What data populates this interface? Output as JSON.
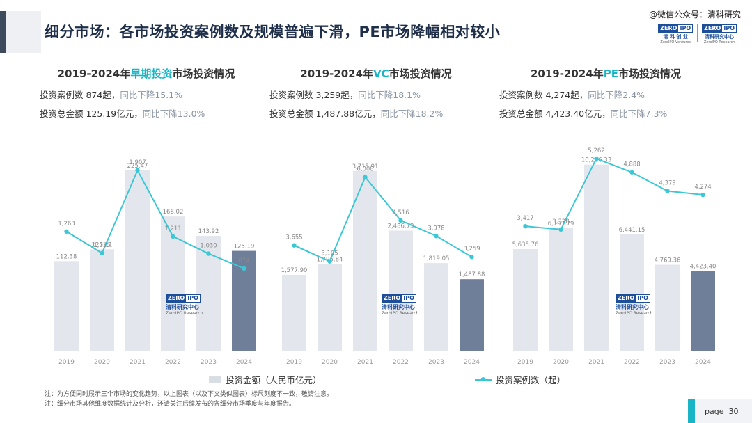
{
  "header": {
    "title": "细分市场：各市场投资案例数及规模普遍下滑，PE市场降幅相对较小",
    "wechat": "@微信公众号：清科研究",
    "logo1": {
      "a": "ZERO",
      "b": "IPO",
      "cn": "清 科 创 业",
      "en": "ZeroIPO Ventures"
    },
    "logo2": {
      "a": "ZERO",
      "b": "IPO",
      "cn": "清科研究中心",
      "en": "ZeroIPO Research"
    }
  },
  "panels": [
    {
      "title_pre": "2019-2024年",
      "title_hl": "早期投资",
      "title_post": "市场投资情况",
      "count_label": "投资案例数 874起，",
      "count_change": "同比下降15.1%",
      "amount_label": "投资总金额 125.19亿元，",
      "amount_change": "同比下降13.0%"
    },
    {
      "title_pre": "2019-2024年",
      "title_hl": "VC",
      "title_post": "市场投资情况",
      "count_label": "投资案例数 3,259起，",
      "count_change": "同比下降18.1%",
      "amount_label": "投资总金额 1,487.88亿元，",
      "amount_change": "同比下降18.2%"
    },
    {
      "title_pre": "2019-2024年",
      "title_hl": "PE",
      "title_post": "市场投资情况",
      "count_label": "投资案例数 4,274起，",
      "count_change": "同比下降2.4%",
      "amount_label": "投资总金额 4,423.40亿元，",
      "amount_change": "同比下降7.3%"
    }
  ],
  "chart_data": [
    {
      "type": "bar+line",
      "title": "2019-2024年早期投资市场投资情况",
      "categories": [
        "2019",
        "2020",
        "2021",
        "2022",
        "2023",
        "2024"
      ],
      "series": [
        {
          "name": "投资金额（人民币亿元）",
          "type": "bar",
          "values": [
            112.38,
            127.11,
            225.47,
            168.02,
            143.92,
            125.19
          ],
          "labels": [
            "112.38",
            "127.11",
            "225.47",
            "168.02",
            "143.92",
            "125.19"
          ]
        },
        {
          "name": "投资案例数（起）",
          "type": "line",
          "values": [
            1263,
            1035,
            1907,
            1211,
            1030,
            874
          ],
          "labels": [
            "1,263",
            "1,035",
            "1,907",
            "1,211",
            "1,030",
            "874"
          ]
        }
      ],
      "bar_ylim": [
        0,
        260
      ],
      "line_ylim": [
        0,
        2200
      ]
    },
    {
      "type": "bar+line",
      "title": "2019-2024年VC市场投资情况",
      "categories": [
        "2019",
        "2020",
        "2021",
        "2022",
        "2023",
        "2024"
      ],
      "series": [
        {
          "name": "投资金额（人民币亿元）",
          "type": "bar",
          "values": [
            1577.9,
            1795.84,
            3715.91,
            2486.73,
            1819.05,
            1487.88
          ],
          "labels": [
            "1,577.90",
            "1,795.84",
            "3,715.91",
            "2,486.73",
            "1,819.05",
            "1,487.88"
          ]
        },
        {
          "name": "投资案例数（起）",
          "type": "line",
          "values": [
            3655,
            3105,
            6008,
            4516,
            3978,
            3259
          ],
          "labels": [
            "3,655",
            "3,105",
            "6,008",
            "4,516",
            "3,978",
            "3,259"
          ]
        }
      ],
      "bar_ylim": [
        0,
        4300
      ],
      "line_ylim": [
        0,
        7200
      ]
    },
    {
      "type": "bar+line",
      "title": "2019-2024年PE市场投资情况",
      "categories": [
        "2019",
        "2020",
        "2021",
        "2022",
        "2023",
        "2024"
      ],
      "series": [
        {
          "name": "投资金额（人民币亿元）",
          "type": "bar",
          "values": [
            5635.76,
            6793.79,
            10286.33,
            6441.15,
            4769.36,
            4423.4
          ],
          "labels": [
            "5,635.76",
            "6,793.79",
            "10,286.33",
            "6,441.15",
            "4,769.36",
            "4,423.40"
          ]
        },
        {
          "name": "投资案例数（起）",
          "type": "line",
          "values": [
            3417,
            3328,
            5262,
            4888,
            4379,
            4274
          ],
          "labels": [
            "3,417",
            "3,328",
            "5,262",
            "4,888",
            "4,379",
            "4,274"
          ]
        }
      ],
      "bar_ylim": [
        0,
        11500
      ],
      "line_ylim": [
        0,
        5700
      ]
    }
  ],
  "legend": {
    "bar": "投资金额（人民币亿元）",
    "line": "投资案例数（起）"
  },
  "watermark": {
    "a": "ZERO",
    "b": "IPO",
    "cn": "清科研究中心",
    "en": "ZeroIPO Research"
  },
  "notes": [
    "注：为方便同时展示三个市场的变化趋势，以上图表（以及下文类似图表）标尺刻度不一致，敬请注意。",
    "注：细分市场其他维度数据统计及分析，还请关注后续发布的各细分市场季度与年度报告。"
  ],
  "page": {
    "label": "page",
    "number": "30"
  },
  "colors": {
    "bar": "#e3e6ec",
    "bar_last": "#6f7f99",
    "line": "#3bc7d3",
    "accent": "#19b5c6",
    "title": "#1f2f4a"
  }
}
